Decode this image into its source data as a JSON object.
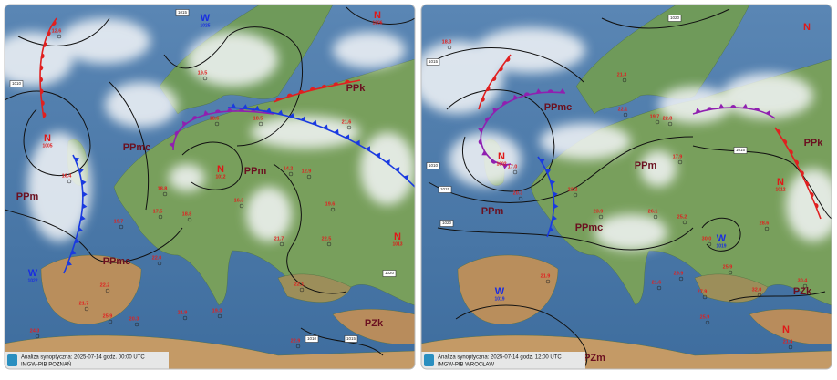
{
  "maps": [
    {
      "caption": "Analiza synoptyczna: 2025-07-14 godz. 00:00 UTC",
      "issuer": "IMGW-PIB POZNAŃ",
      "air_masses": [
        "PPk",
        "PPmc",
        "PPm",
        "PPm",
        "PPmc",
        "PZk"
      ],
      "pressure_centers": [
        {
          "type": "W",
          "value": "1025"
        },
        {
          "type": "N",
          "value": "1006"
        },
        {
          "type": "N",
          "value": "1005"
        },
        {
          "type": "N",
          "value": "1012"
        },
        {
          "type": "N",
          "value": "1013"
        },
        {
          "type": "W",
          "value": "1022"
        }
      ],
      "temperatures": [
        "12.6",
        "19.5",
        "16.4",
        "18.6",
        "19.7",
        "17.5",
        "18.8",
        "16.3",
        "21.7",
        "22.0",
        "22.2",
        "21.7",
        "25.9",
        "24.3",
        "21.9",
        "19.3",
        "22.1",
        "22.5",
        "19.6",
        "14.2",
        "12.9",
        "21.6",
        "18.5",
        "18.8",
        "20.3",
        "22.9"
      ],
      "isobar_labels": [
        "1015",
        "1010",
        "1020",
        "1015",
        "1010"
      ]
    },
    {
      "caption": "Analiza synoptyczna: 2025-07-14 godz. 12:00 UTC",
      "issuer": "IMGW-PIB WROCŁAW",
      "air_masses": [
        "PPmc",
        "PPm",
        "PPk",
        "PPm",
        "PPmc",
        "PZk",
        "PZm"
      ],
      "pressure_centers": [
        {
          "type": "N",
          "value": "1002"
        },
        {
          "type": "W",
          "value": "1019"
        },
        {
          "type": "N",
          "value": "1012"
        },
        {
          "type": "W",
          "value": "1019"
        },
        {
          "type": "N"
        },
        {
          "type": "N"
        }
      ],
      "temperatures": [
        "18.3",
        "21.3",
        "22.1",
        "19.7",
        "17.0",
        "22.8",
        "17.9",
        "20.3",
        "22.2",
        "23.9",
        "26.1",
        "25.2",
        "30.0",
        "25.9",
        "29.9",
        "21.9",
        "21.6",
        "28.6",
        "30.4",
        "32.0",
        "27.9",
        "21.4",
        "25.9"
      ],
      "isobar_labels": [
        "1020",
        "1015",
        "1010",
        "1015",
        "1020",
        "1015"
      ]
    }
  ]
}
